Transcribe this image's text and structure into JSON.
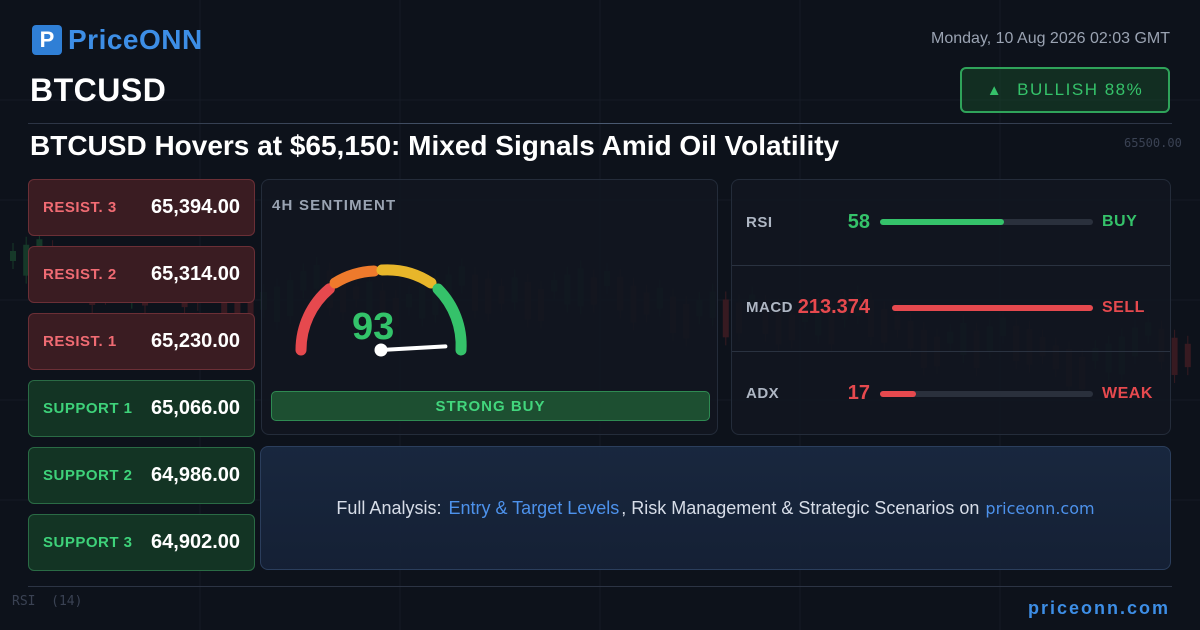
{
  "brand": {
    "logo_letter": "P",
    "name": "PriceONN"
  },
  "datetime": "Monday, 10 Aug 2026 02:03 GMT",
  "ticker": "BTCUSD",
  "badge": {
    "icon": "up-triangle-icon",
    "arrow": "▲",
    "label": "BULLISH 88%",
    "color": "#35c26a"
  },
  "headline": "BTCUSD Hovers at $65,150: Mixed Signals Amid Oil Volatility",
  "levels": [
    {
      "label": "RESIST. 3",
      "value": "65,394.00",
      "kind": "resistance"
    },
    {
      "label": "RESIST. 2",
      "value": "65,314.00",
      "kind": "resistance"
    },
    {
      "label": "RESIST. 1",
      "value": "65,230.00",
      "kind": "resistance"
    },
    {
      "label": "SUPPORT 1",
      "value": "65,066.00",
      "kind": "support"
    },
    {
      "label": "SUPPORT 2",
      "value": "64,986.00",
      "kind": "support"
    },
    {
      "label": "SUPPORT 3",
      "value": "64,902.00",
      "kind": "support"
    }
  ],
  "sentiment": {
    "title": "4H SENTIMENT",
    "score": "93",
    "score_value": 93,
    "signal": "STRONG BUY"
  },
  "indicators": [
    {
      "name": "RSI",
      "value": "58",
      "fill": 0.58,
      "signal": "BUY",
      "color": "green"
    },
    {
      "name": "MACD",
      "value": "213.374",
      "fill": 1.0,
      "signal": "SELL",
      "color": "red"
    },
    {
      "name": "ADX",
      "value": "17",
      "fill": 0.17,
      "signal": "WEAK",
      "color": "red"
    }
  ],
  "cta": {
    "prefix": "Full Analysis:",
    "link": "Entry & Target Levels",
    "middle": ", Risk Management & Strategic Scenarios on",
    "site": "priceonn.com"
  },
  "footer_site": "priceonn.com",
  "background": {
    "price_label": "65500.00",
    "rsi_label": "RSI",
    "rsi_period": "(14)"
  },
  "colors": {
    "bullish": "#35c26a",
    "bearish": "#e6494e",
    "accent": "#3d8ee6"
  }
}
